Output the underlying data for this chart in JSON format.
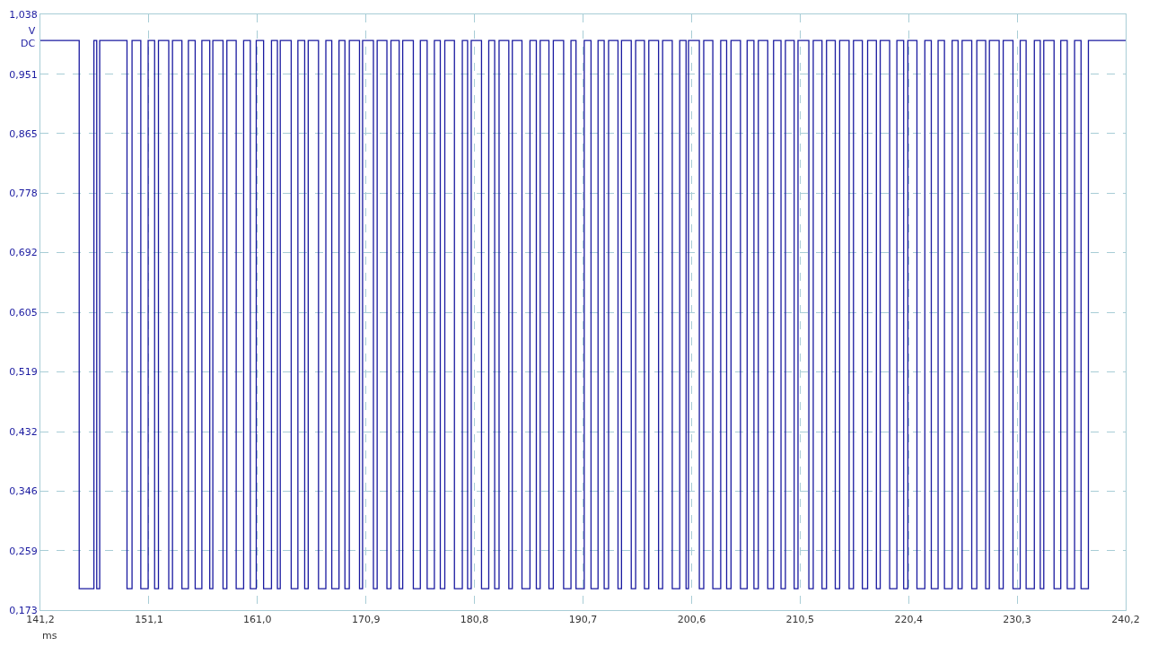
{
  "chart_data": {
    "type": "step",
    "xlabel": "ms",
    "ylabel": "V\nDC",
    "x": [
      141.2,
      144.74,
      146.08,
      146.34,
      146.61,
      149.1,
      149.56,
      150.36,
      151.03,
      151.62,
      151.97,
      152.91,
      153.25,
      154.11,
      154.7,
      155.32,
      155.93,
      156.65,
      156.93,
      157.86,
      158.21,
      159.06,
      159.74,
      160.35,
      160.89,
      161.56,
      162.28,
      162.82,
      163.08,
      164.08,
      164.69,
      165.31,
      165.63,
      166.57,
      167.24,
      167.78,
      168.44,
      168.98,
      169.38,
      170.31,
      170.59,
      171.58,
      171.92,
      172.81,
      173.18,
      173.93,
      174.25,
      175.22,
      175.86,
      176.48,
      177.14,
      177.68,
      178.09,
      178.97,
      179.69,
      180.17,
      180.5,
      181.44,
      182.1,
      182.64,
      183.04,
      183.93,
      184.25,
      185.13,
      185.86,
      186.44,
      186.79,
      187.59,
      187.99,
      188.93,
      189.6,
      190.06,
      190.81,
      191.43,
      192.07,
      192.63,
      193.03,
      193.89,
      194.21,
      195.1,
      195.5,
      196.3,
      196.7,
      197.59,
      197.96,
      198.84,
      199.52,
      200.1,
      200.32,
      201.31,
      201.71,
      202.54,
      203.26,
      203.8,
      204.2,
      205.06,
      205.67,
      206.29,
      206.69,
      207.55,
      208.08,
      208.76,
      209.16,
      209.96,
      210.31,
      211.3,
      211.7,
      212.5,
      212.91,
      213.71,
      214.11,
      214.97,
      215.37,
      216.18,
      216.66,
      217.46,
      217.81,
      218.67,
      219.33,
      219.95,
      220.33,
      221.16,
      221.88,
      222.47,
      223.09,
      223.67,
      224.37,
      224.91,
      225.28,
      226.16,
      226.62,
      227.43,
      227.77,
      228.66,
      229.03,
      229.92,
      230.58,
      231.12,
      231.87,
      232.41,
      232.73,
      233.67,
      234.28,
      234.87,
      235.54,
      236.13,
      236.8,
      240.2
    ],
    "series": [
      {
        "color": "#1a1aa0",
        "values": [
          1.0,
          0.204,
          1.0,
          0.204,
          1.0,
          0.204,
          1.0,
          0.204,
          1.0,
          0.204,
          1.0,
          0.204,
          1.0,
          0.204,
          1.0,
          0.204,
          1.0,
          0.204,
          1.0,
          0.204,
          1.0,
          0.204,
          1.0,
          0.204,
          1.0,
          0.204,
          1.0,
          0.204,
          1.0,
          0.204,
          1.0,
          0.204,
          1.0,
          0.204,
          1.0,
          0.204,
          1.0,
          0.204,
          1.0,
          0.204,
          1.0,
          0.204,
          1.0,
          0.204,
          1.0,
          0.204,
          1.0,
          0.204,
          1.0,
          0.204,
          1.0,
          0.204,
          1.0,
          0.204,
          1.0,
          0.204,
          1.0,
          0.204,
          1.0,
          0.204,
          1.0,
          0.204,
          1.0,
          0.204,
          1.0,
          0.204,
          1.0,
          0.204,
          1.0,
          0.204,
          1.0,
          0.204,
          1.0,
          0.204,
          1.0,
          0.204,
          1.0,
          0.204,
          1.0,
          0.204,
          1.0,
          0.204,
          1.0,
          0.204,
          1.0,
          0.204,
          1.0,
          0.204,
          1.0,
          0.204,
          1.0,
          0.204,
          1.0,
          0.204,
          1.0,
          0.204,
          1.0,
          0.204,
          1.0,
          0.204,
          1.0,
          0.204,
          1.0,
          0.204,
          1.0,
          0.204,
          1.0,
          0.204,
          1.0,
          0.204,
          1.0,
          0.204,
          1.0,
          0.204,
          1.0,
          0.204,
          1.0,
          0.204,
          1.0,
          0.204,
          1.0,
          0.204,
          1.0,
          0.204,
          1.0,
          0.204,
          1.0,
          0.204,
          1.0,
          0.204,
          1.0,
          0.204,
          1.0,
          0.204,
          1.0,
          0.204,
          1.0,
          0.204,
          1.0,
          0.204,
          1.0,
          0.204,
          1.0,
          0.204,
          1.0,
          0.204,
          1.0,
          1.0
        ]
      }
    ],
    "xlim": [
      141.2,
      240.2
    ],
    "xticks": [
      {
        "value": 141.2,
        "label": "141,2"
      },
      {
        "value": 151.1,
        "label": "151,1"
      },
      {
        "value": 161.0,
        "label": "161,0"
      },
      {
        "value": 170.9,
        "label": "170,9"
      },
      {
        "value": 180.8,
        "label": "180,8"
      },
      {
        "value": 190.7,
        "label": "190,7"
      },
      {
        "value": 200.6,
        "label": "200,6"
      },
      {
        "value": 210.5,
        "label": "210,5"
      },
      {
        "value": 220.4,
        "label": "220,4"
      },
      {
        "value": 230.3,
        "label": "230,3"
      },
      {
        "value": 240.2,
        "label": "240,2"
      }
    ],
    "ylim": [
      0.173,
      1.038
    ],
    "yticks": [
      {
        "value": 0.173,
        "label": "0,173"
      },
      {
        "value": 0.259,
        "label": "0,259"
      },
      {
        "value": 0.346,
        "label": "0,346"
      },
      {
        "value": 0.432,
        "label": "0,432"
      },
      {
        "value": 0.519,
        "label": "0,519"
      },
      {
        "value": 0.605,
        "label": "0,605"
      },
      {
        "value": 0.692,
        "label": "0,692"
      },
      {
        "value": 0.778,
        "label": "0,778"
      },
      {
        "value": 0.865,
        "label": "0,865"
      },
      {
        "value": 0.951,
        "label": "0,951"
      },
      {
        "value": 1.038,
        "label": "1,038"
      }
    ],
    "grid": true,
    "line_style": "solid"
  }
}
